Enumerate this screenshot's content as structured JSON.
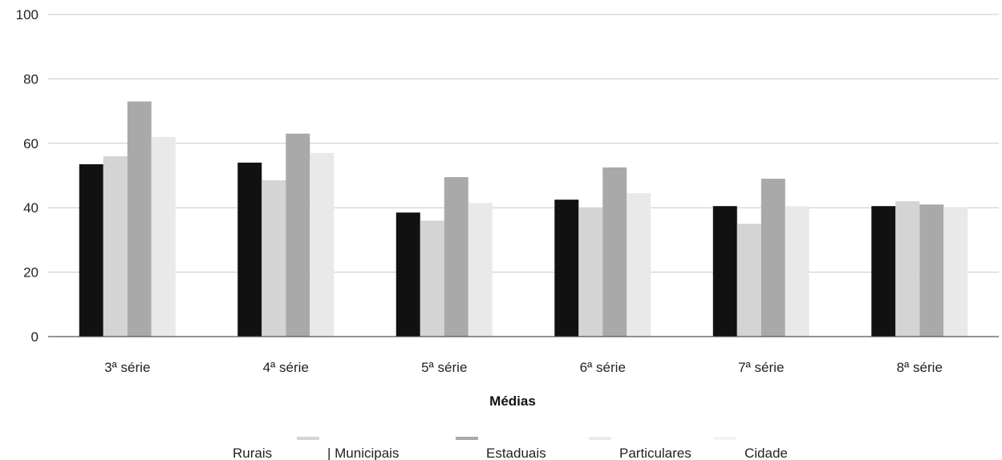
{
  "chart_data": {
    "type": "bar",
    "xlabel": "Médias",
    "ylabel": "",
    "ylim": [
      0,
      100
    ],
    "yticks": [
      0,
      20,
      40,
      60,
      80,
      100
    ],
    "grid": true,
    "legend_position": "bottom",
    "categories": [
      "3ª série",
      "4ª série",
      "5ª série",
      "6ª série",
      "7ª série",
      "8ª série"
    ],
    "series": [
      {
        "name": "Rurais",
        "color": "#111111",
        "values": [
          53.5,
          54,
          38.5,
          42.5,
          40.5,
          40.5
        ]
      },
      {
        "name": "| Municipais",
        "color": "#d4d4d4",
        "values": [
          56,
          48.5,
          36,
          40,
          35,
          42
        ]
      },
      {
        "name": "Estaduais",
        "color": "#a9a9a9",
        "values": [
          73,
          63,
          49.5,
          52.5,
          49,
          41
        ]
      },
      {
        "name": "Particulares",
        "color": "#e9e9e9",
        "values": [
          62,
          57,
          41.5,
          44.5,
          40.5,
          40
        ]
      }
    ],
    "extra_legend": [
      {
        "name": "Cidade",
        "color": "#f4f4f4"
      }
    ]
  }
}
